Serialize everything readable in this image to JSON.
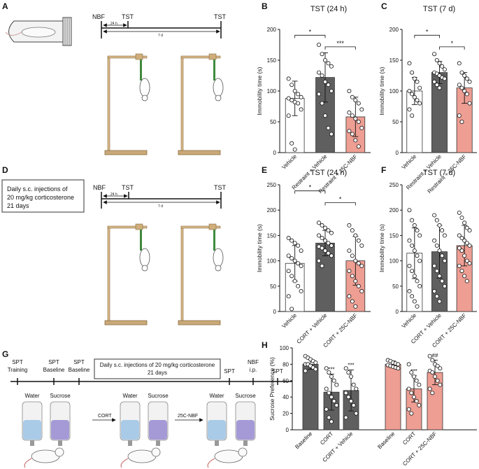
{
  "panel_letters": {
    "A": "A",
    "B": "B",
    "C": "C",
    "D": "D",
    "E": "E",
    "F": "F",
    "G": "G",
    "H": "H"
  },
  "timeline_a": {
    "start": "NBF",
    "first": "TST",
    "last": "TST",
    "short_span": "24 h",
    "long_span": "7 d"
  },
  "timeline_d": {
    "start": "NBF",
    "first": "TST",
    "last": "TST",
    "short_span": "24 h",
    "long_span": "7 d"
  },
  "box_d": {
    "line1": "Daily s.c. injections of",
    "line2": "20 mg/kg corticosterone",
    "line3": "21 days"
  },
  "timeline_g": {
    "labels": [
      {
        "line1": "SPT",
        "line2": "Training"
      },
      {
        "line1": "SPT",
        "line2": "Baseline"
      },
      {
        "line1": "SPT",
        "line2": "Baseline"
      },
      {
        "line1": "SPT",
        "line2": ""
      },
      {
        "line1": "NBF",
        "line2": "i.p."
      },
      {
        "line1": "SPT",
        "line2": ""
      }
    ],
    "box_line1": "Daily s.c. injections of 20 mg/kg corticosterone",
    "box_line2": "21 days",
    "bottles": [
      "Water",
      "Sucrose",
      "Water",
      "Sucrose",
      "Water",
      "Sucrose"
    ],
    "arrow1": "CORT",
    "arrow2": "25C-NBF"
  },
  "colors": {
    "white_bar": "#ffffff",
    "dark_bar": "#5f5f5f",
    "salmon_bar": "#ee9e93",
    "water": "#a9cbe8",
    "sucrose": "#a59ad6",
    "rod": "#3f8a3f",
    "wood": "#c9a978"
  },
  "chart_data": [
    {
      "panel": "B",
      "type": "bar",
      "title": "TST (24 h)",
      "ylabel": "Immobility time (s)",
      "ylim": [
        0,
        200
      ],
      "yticks": [
        0,
        50,
        100,
        150,
        200
      ],
      "categories": [
        "Vehicle",
        "Restraint + Vehicle",
        "Restraint + 25C-NBF"
      ],
      "values": [
        88,
        122,
        58
      ],
      "errors": [
        28,
        40,
        32
      ],
      "points": [
        [
          120,
          110,
          100,
          95,
          90,
          88,
          85,
          82,
          80,
          70,
          60,
          15,
          5
        ],
        [
          175,
          160,
          150,
          145,
          140,
          130,
          125,
          115,
          110,
          100,
          95,
          80,
          60,
          40,
          30
        ],
        [
          100,
          90,
          85,
          80,
          70,
          65,
          60,
          55,
          50,
          40,
          35,
          30,
          20,
          10
        ]
      ],
      "brackets": [
        {
          "from": 0,
          "to": 1,
          "label": "*"
        },
        {
          "from": 1,
          "to": 2,
          "label": "***"
        }
      ]
    },
    {
      "panel": "C",
      "type": "bar",
      "title": "TST (7 d)",
      "ylabel": "Immobility time (s)",
      "ylim": [
        0,
        200
      ],
      "yticks": [
        0,
        50,
        100,
        150,
        200
      ],
      "categories": [
        "Vehicle",
        "Restraint + Vehicle",
        "Restraint + 25C-NBF"
      ],
      "values": [
        100,
        130,
        105
      ],
      "errors": [
        22,
        18,
        25
      ],
      "points": [
        [
          145,
          130,
          120,
          115,
          105,
          100,
          95,
          90,
          85,
          80,
          70,
          60
        ],
        [
          160,
          150,
          145,
          140,
          135,
          130,
          128,
          125,
          122,
          120,
          115,
          110,
          105
        ],
        [
          145,
          130,
          125,
          120,
          115,
          110,
          105,
          100,
          95,
          80,
          60,
          50
        ]
      ],
      "brackets": [
        {
          "from": 0,
          "to": 1,
          "label": "*"
        },
        {
          "from": 1,
          "to": 2,
          "label": "*"
        }
      ]
    },
    {
      "panel": "E",
      "type": "bar",
      "title": "TST (24 h)",
      "ylabel": "Immobility time (s)",
      "ylim": [
        0,
        250
      ],
      "yticks": [
        0,
        50,
        100,
        150,
        200,
        250
      ],
      "categories": [
        "Vehicle",
        "CORT + Vehicle",
        "CORT + 25C-NBF"
      ],
      "values": [
        95,
        135,
        100
      ],
      "errors": [
        35,
        25,
        48
      ],
      "points": [
        [
          145,
          140,
          135,
          130,
          120,
          110,
          105,
          100,
          95,
          90,
          80,
          70,
          60,
          50,
          40,
          30,
          5
        ],
        [
          175,
          170,
          165,
          160,
          155,
          150,
          145,
          140,
          135,
          130,
          128,
          125,
          120,
          115,
          110,
          100,
          90
        ],
        [
          170,
          160,
          150,
          140,
          130,
          120,
          110,
          100,
          95,
          90,
          80,
          70,
          60,
          50,
          40,
          30,
          20,
          10
        ]
      ],
      "brackets": [
        {
          "from": 0,
          "to": 1,
          "label": "*"
        },
        {
          "from": 1,
          "to": 2,
          "label": "*"
        }
      ]
    },
    {
      "panel": "F",
      "type": "bar",
      "title": "TST (7 d)",
      "ylabel": "Immobility time (s)",
      "ylim": [
        0,
        250
      ],
      "yticks": [
        0,
        50,
        100,
        150,
        200,
        250
      ],
      "categories": [
        "Vehicle",
        "CORT + Vehicle",
        "CORT + 25C-NBF"
      ],
      "values": [
        115,
        118,
        130
      ],
      "errors": [
        50,
        52,
        40
      ],
      "points": [
        [
          200,
          180,
          170,
          160,
          150,
          140,
          130,
          120,
          110,
          100,
          90,
          80,
          70,
          60,
          50,
          40,
          30,
          20,
          10
        ],
        [
          190,
          180,
          170,
          160,
          150,
          140,
          130,
          120,
          110,
          100,
          90,
          80,
          70,
          60,
          50,
          40,
          30,
          20
        ],
        [
          195,
          185,
          175,
          165,
          160,
          150,
          145,
          140,
          135,
          130,
          125,
          120,
          110,
          100,
          95,
          90,
          80,
          70,
          60
        ]
      ],
      "brackets": []
    },
    {
      "panel": "H",
      "type": "bar",
      "ylabel": "Sucrose Preference (%)",
      "ylim": [
        0,
        100
      ],
      "yticks": [
        0,
        20,
        40,
        60,
        80,
        100
      ],
      "categories": [
        "Baseline",
        "CORT",
        "CORT + Vehicle",
        "Baseline",
        "CORT",
        "CORT + 25C-NBF"
      ],
      "values": [
        80,
        46,
        48,
        80,
        50,
        70
      ],
      "errors": [
        6,
        22,
        25,
        4,
        16,
        15
      ],
      "groups": [
        "dark",
        "dark",
        "dark",
        "salmon",
        "salmon",
        "salmon"
      ],
      "points": [
        [
          90,
          88,
          86,
          84,
          82,
          80,
          80,
          78,
          76,
          74,
          72
        ],
        [
          75,
          70,
          65,
          60,
          55,
          50,
          45,
          40,
          35,
          30,
          25,
          15,
          10
        ],
        [
          75,
          70,
          65,
          55,
          50,
          45,
          40,
          35,
          30,
          20,
          15
        ],
        [
          85,
          84,
          82,
          81,
          80,
          79,
          78,
          77,
          76,
          75
        ],
        [
          80,
          70,
          65,
          60,
          55,
          50,
          45,
          40,
          35,
          30,
          25,
          20
        ],
        [
          90,
          85,
          80,
          78,
          75,
          72,
          70,
          65,
          60,
          55,
          50,
          45
        ]
      ],
      "annotations": [
        "",
        "***",
        "***",
        "",
        "***",
        "##"
      ]
    }
  ]
}
